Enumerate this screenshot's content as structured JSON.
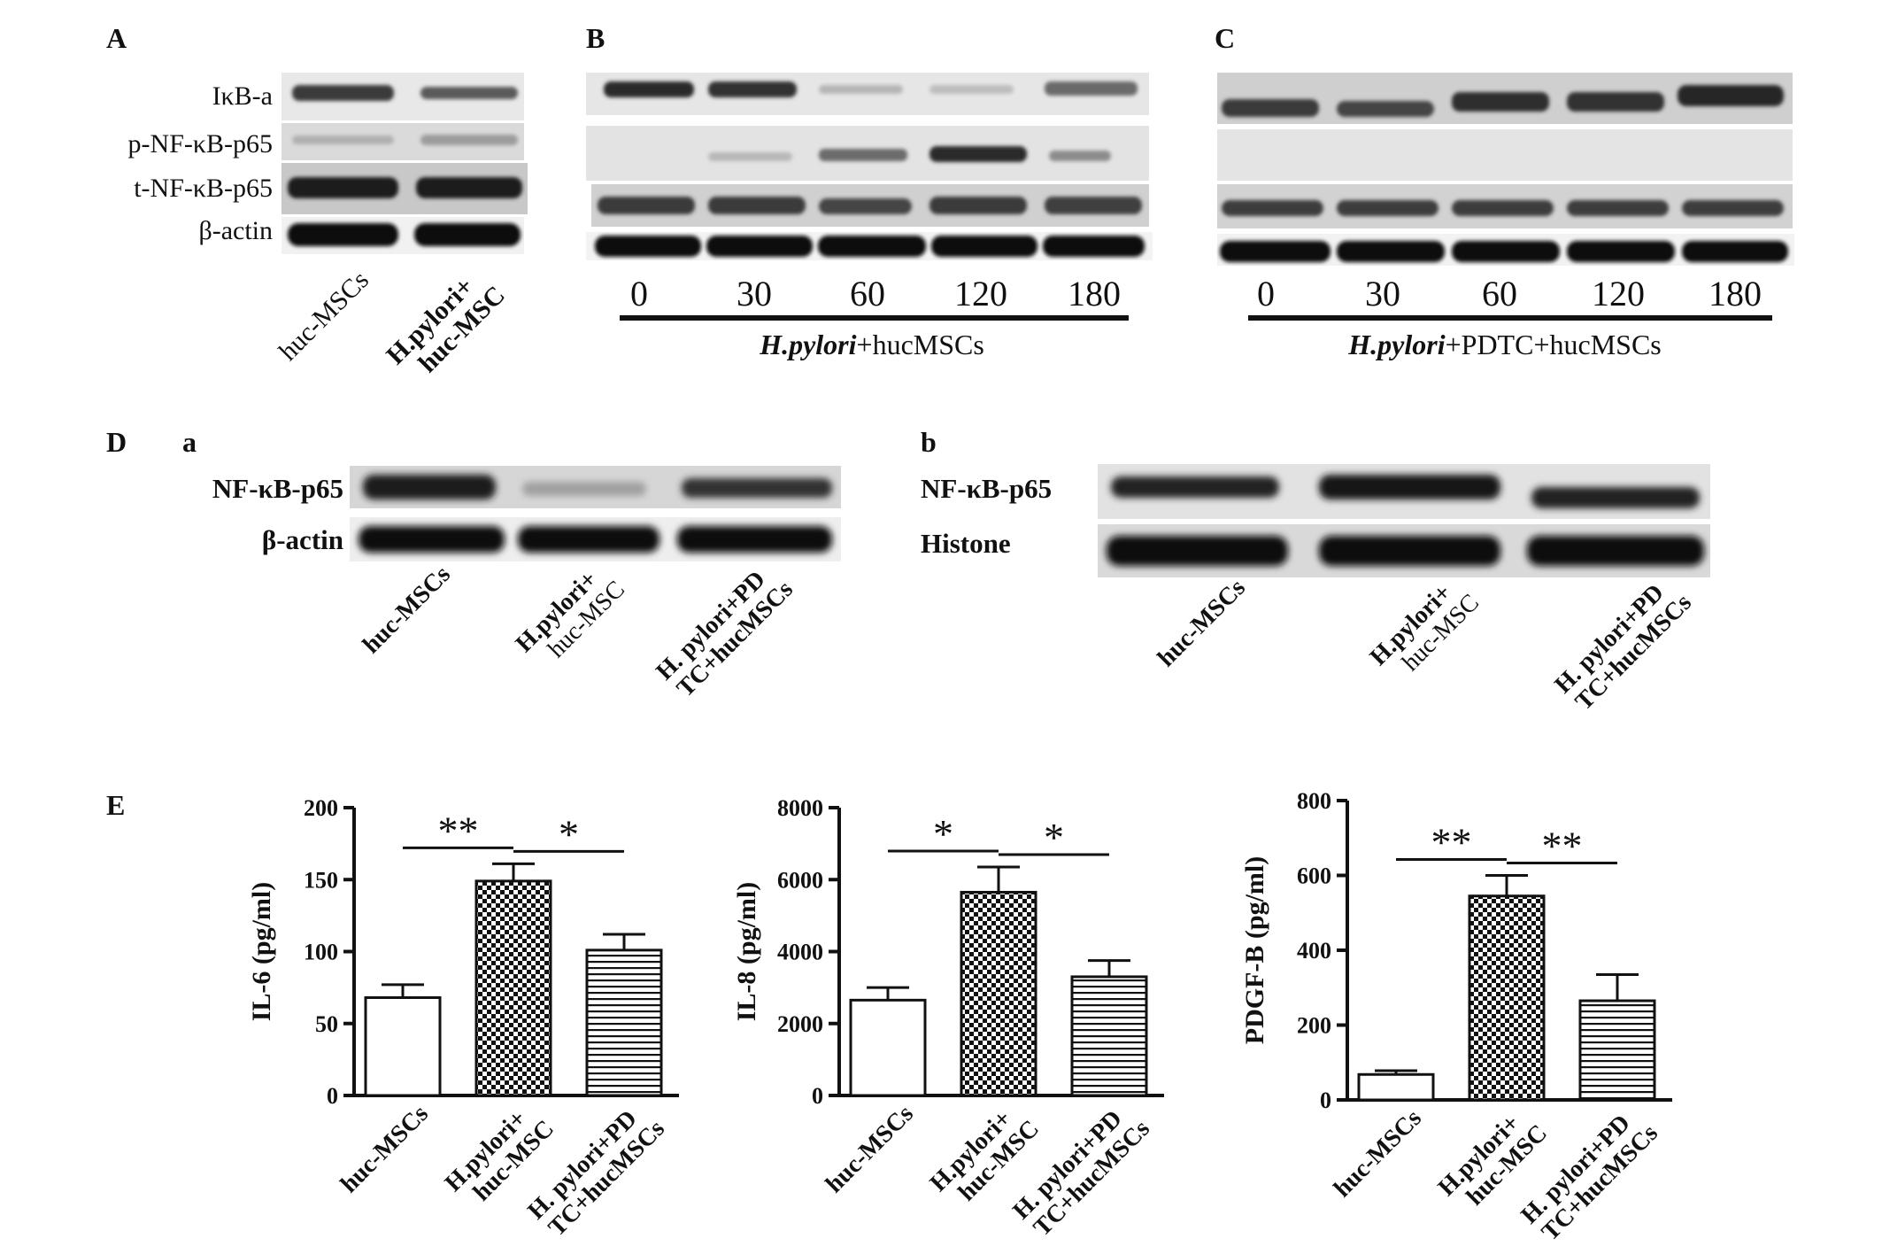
{
  "panels": {
    "A": {
      "letter": "A",
      "row_labels": [
        "IκB-a",
        "p-NF-κB-p65",
        "t-NF-κB-p65",
        "β-actin"
      ],
      "lanes": [
        {
          "lines": [
            "huc-MSCs"
          ]
        },
        {
          "lines": [
            "H.pylori+",
            "huc-MSC"
          ]
        }
      ]
    },
    "B": {
      "letter": "B",
      "times": [
        "0",
        "30",
        "60",
        "120",
        "180"
      ],
      "condition_italic": "H.pylori",
      "condition_rest": "+hucMSCs"
    },
    "C": {
      "letter": "C",
      "times": [
        "0",
        "30",
        "60",
        "120",
        "180"
      ],
      "condition_italic": "H.pylori",
      "condition_rest": "+PDTC+hucMSCs"
    },
    "D": {
      "letter": "D",
      "a": {
        "sub": "a",
        "row_labels": [
          "NF-κB-p65",
          "β-actin"
        ],
        "lanes": [
          {
            "lines": [
              "huc-MSCs"
            ]
          },
          {
            "lines": [
              "H.pylori+",
              "huc-MSC"
            ]
          },
          {
            "lines": [
              "H. pylori+PD",
              "TC+hucMSCs"
            ]
          }
        ]
      },
      "b": {
        "sub": "b",
        "row_labels": [
          "NF-κB-p65",
          "Histone"
        ],
        "lanes": [
          {
            "lines": [
              "huc-MSCs"
            ]
          },
          {
            "lines": [
              "H.pylori+",
              "huc-MSC"
            ]
          },
          {
            "lines": [
              "H. pylori+PD",
              "TC+hucMSCs"
            ]
          }
        ]
      }
    },
    "E": {
      "letter": "E"
    }
  },
  "chart_data": [
    {
      "type": "bar",
      "ylabel": "IL-6 (pg/ml)",
      "ylim": [
        0,
        200
      ],
      "yticks": [
        "0",
        "50",
        "100",
        "150",
        "200"
      ],
      "categories": [
        {
          "lines": [
            "huc-MSCs"
          ]
        },
        {
          "lines": [
            "H.pylori+",
            "huc-MSC"
          ]
        },
        {
          "lines": [
            "H. pylori+PD",
            "TC+hucMSCs"
          ]
        }
      ],
      "values": [
        68,
        149,
        101
      ],
      "errors": [
        9,
        12,
        11
      ],
      "fills": [
        "white",
        "checker",
        "hlines"
      ],
      "significance": [
        {
          "label": "**"
        },
        {
          "label": "*"
        }
      ]
    },
    {
      "type": "bar",
      "ylabel": "IL-8 (pg/ml)",
      "ylim": [
        0,
        8000
      ],
      "yticks": [
        "0",
        "2000",
        "4000",
        "6000",
        "8000"
      ],
      "categories": [
        {
          "lines": [
            "huc-MSCs"
          ]
        },
        {
          "lines": [
            "H.pylori+",
            "huc-MSC"
          ]
        },
        {
          "lines": [
            "H. pylori+PD",
            "TC+hucMSCs"
          ]
        }
      ],
      "values": [
        2650,
        5650,
        3300
      ],
      "errors": [
        350,
        700,
        450
      ],
      "fills": [
        "white",
        "checker",
        "hlines"
      ],
      "significance": [
        {
          "label": "*"
        },
        {
          "label": "*"
        }
      ]
    },
    {
      "type": "bar",
      "ylabel": "PDGF-B (pg/ml)",
      "ylim": [
        0,
        800
      ],
      "yticks": [
        "0",
        "200",
        "400",
        "600",
        "800"
      ],
      "categories": [
        {
          "lines": [
            "huc-MSCs"
          ]
        },
        {
          "lines": [
            "H.pylori+",
            "huc-MSC"
          ]
        },
        {
          "lines": [
            "H. pylori+PD",
            "TC+hucMSCs"
          ]
        }
      ],
      "values": [
        68,
        545,
        265
      ],
      "errors": [
        10,
        55,
        70
      ],
      "fills": [
        "white",
        "checker",
        "hlines"
      ],
      "significance": [
        {
          "label": "**"
        },
        {
          "label": "**"
        }
      ]
    }
  ]
}
